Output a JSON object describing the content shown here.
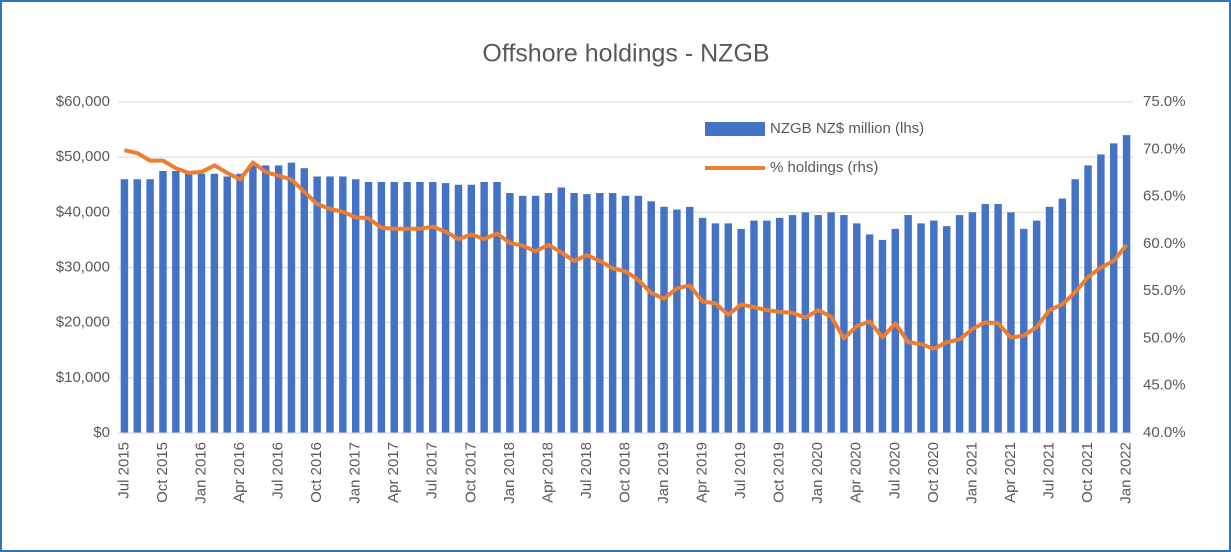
{
  "chart_data": {
    "type": "bar_line",
    "title": "Offshore holdings - NZGB",
    "categories": [
      "Jul 2015",
      null,
      null,
      "Oct 2015",
      null,
      null,
      "Jan 2016",
      null,
      null,
      "Apr 2016",
      null,
      null,
      "Jul 2016",
      null,
      null,
      "Oct 2016",
      null,
      null,
      "Jan 2017",
      null,
      null,
      "Apr 2017",
      null,
      null,
      "Jul 2017",
      null,
      null,
      "Oct 2017",
      null,
      null,
      "Jan 2018",
      null,
      null,
      "Apr 2018",
      null,
      null,
      "Jul 2018",
      null,
      null,
      "Oct 2018",
      null,
      null,
      "Jan 2019",
      null,
      null,
      "Apr 2019",
      null,
      null,
      "Jul 2019",
      null,
      null,
      "Oct 2019",
      null,
      null,
      "Jan 2020",
      null,
      null,
      "Apr 2020",
      null,
      null,
      "Jul 2020",
      null,
      null,
      "Oct 2020",
      null,
      null,
      "Jan 2021",
      null,
      null,
      "Apr 2021",
      null,
      null,
      "Jul 2021",
      null,
      null,
      "Oct 2021",
      null,
      null,
      "Jan 2022"
    ],
    "series": [
      {
        "name": "NZGB NZ$ million (lhs)",
        "color": "#4472c4",
        "kind": "bar",
        "axis": "y",
        "values": [
          46000,
          46000,
          46000,
          47500,
          47500,
          47000,
          47000,
          47000,
          46500,
          47000,
          48500,
          48500,
          48500,
          49000,
          48000,
          46500,
          46500,
          46500,
          46000,
          45500,
          45500,
          45500,
          45500,
          45500,
          45500,
          45300,
          45000,
          45000,
          45500,
          45500,
          43500,
          43000,
          43000,
          43500,
          44500,
          43500,
          43300,
          43500,
          43500,
          43000,
          43000,
          42000,
          41000,
          40500,
          41000,
          39000,
          38000,
          38000,
          37000,
          38500,
          38500,
          39000,
          39500,
          40000,
          39500,
          40000,
          39500,
          38000,
          36000,
          35000,
          37000,
          39500,
          38000,
          38500,
          37500,
          39500,
          40000,
          41500,
          41500,
          40000,
          37000,
          38500,
          41000,
          42500,
          46000,
          48500,
          50500,
          52500,
          54000
        ]
      },
      {
        "name": "% holdings (rhs)",
        "color": "#ed7d31",
        "kind": "line",
        "axis": "y2",
        "values": [
          69.9,
          69.6,
          68.8,
          68.8,
          68.0,
          67.5,
          67.6,
          68.3,
          67.5,
          66.8,
          68.6,
          67.6,
          67.2,
          66.8,
          65.5,
          64.2,
          63.7,
          63.4,
          62.8,
          62.7,
          61.7,
          61.6,
          61.6,
          61.6,
          61.8,
          61.3,
          60.5,
          61.0,
          60.5,
          61.1,
          60.1,
          59.8,
          59.2,
          59.9,
          59.1,
          58.2,
          58.8,
          58.2,
          57.4,
          57.1,
          56.2,
          54.8,
          54.2,
          55.3,
          55.6,
          53.9,
          53.7,
          52.5,
          53.6,
          53.3,
          53.0,
          52.8,
          52.7,
          52.2,
          53.0,
          52.3,
          50.0,
          51.3,
          51.8,
          50.1,
          51.6,
          49.6,
          49.4,
          48.9,
          49.6,
          49.9,
          51.0,
          51.7,
          51.6,
          50.1,
          50.3,
          51.2,
          53.0,
          53.6,
          54.9,
          56.5,
          57.5,
          58.2,
          59.9
        ]
      }
    ],
    "ylim": [
      0,
      60000
    ],
    "yticks": [
      {
        "value": 0,
        "label": "$0"
      },
      {
        "value": 10000,
        "label": "$10,000"
      },
      {
        "value": 20000,
        "label": "$20,000"
      },
      {
        "value": 30000,
        "label": "$30,000"
      },
      {
        "value": 40000,
        "label": "$40,000"
      },
      {
        "value": 50000,
        "label": "$50,000"
      },
      {
        "value": 60000,
        "label": "$60,000"
      }
    ],
    "y2lim": [
      40,
      75
    ],
    "y2ticks": [
      {
        "value": 40,
        "label": "40.0%"
      },
      {
        "value": 45,
        "label": "45.0%"
      },
      {
        "value": 50,
        "label": "50.0%"
      },
      {
        "value": 55,
        "label": "55.0%"
      },
      {
        "value": 60,
        "label": "60.0%"
      },
      {
        "value": 65,
        "label": "65.0%"
      },
      {
        "value": 70,
        "label": "70.0%"
      },
      {
        "value": 75,
        "label": "75.0%"
      }
    ],
    "grid": true,
    "legend": "top-right"
  }
}
